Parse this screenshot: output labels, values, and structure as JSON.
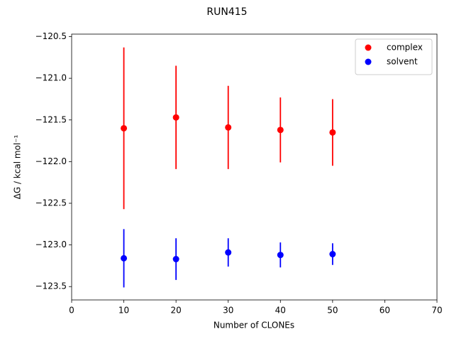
{
  "chart_data": {
    "type": "scatter",
    "title": "RUN415",
    "x_label": "Number of CLONEs",
    "y_label": "ΔG / kcal mol⁻¹",
    "x": [
      10,
      20,
      30,
      40,
      50
    ],
    "series": [
      {
        "name": "complex",
        "color": "#ff0000",
        "values": [
          -121.6,
          -121.47,
          -121.59,
          -121.62,
          -121.65
        ],
        "errors": [
          0.97,
          0.62,
          0.5,
          0.39,
          0.4
        ]
      },
      {
        "name": "solvent",
        "color": "#0000ff",
        "values": [
          -123.16,
          -123.17,
          -123.09,
          -123.12,
          -123.11
        ],
        "errors": [
          0.35,
          0.25,
          0.17,
          0.15,
          0.13
        ]
      }
    ],
    "xlim": [
      0,
      70
    ],
    "xticks": [
      0,
      10,
      20,
      30,
      40,
      50,
      60,
      70
    ],
    "ylim": [
      -123.66,
      -120.47
    ],
    "yticks": [
      {
        "value": -123.5,
        "label": "−123.5"
      },
      {
        "value": -123.0,
        "label": "−123.0"
      },
      {
        "value": -122.5,
        "label": "−122.5"
      },
      {
        "value": -122.0,
        "label": "−122.0"
      },
      {
        "value": -121.5,
        "label": "−121.5"
      },
      {
        "value": -121.0,
        "label": "−121.0"
      },
      {
        "value": -120.5,
        "label": "−120.5"
      }
    ],
    "grid": false,
    "legend": "upper right"
  }
}
